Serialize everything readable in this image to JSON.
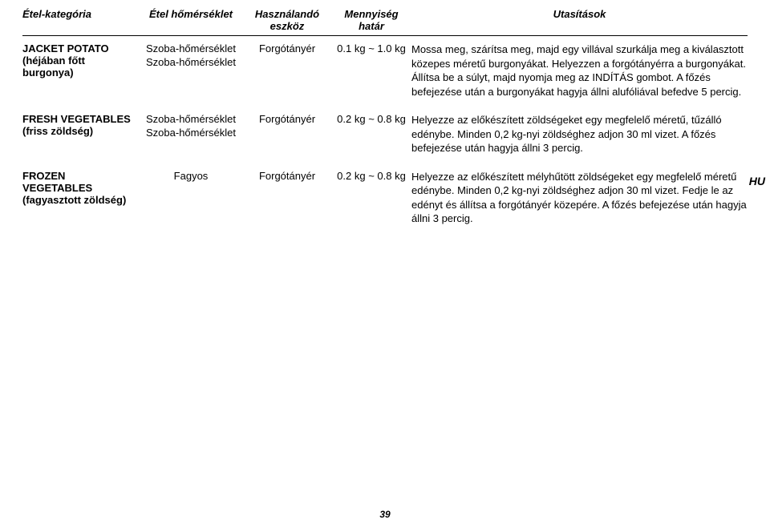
{
  "page_number": "39",
  "lang_code": "HU",
  "headers": {
    "col1": "Étel-kategória",
    "col2": "Étel hőmérséklet",
    "col3": "Használandó eszköz",
    "col4": "Mennyiség határ",
    "col5": "Utasítások"
  },
  "rows": [
    {
      "name": "JACKET POTATO (héjában főtt burgonya)",
      "temp": "Szoba-hőmérséklet Szoba-hőmérséklet",
      "tool": "Forgótányér",
      "qty": "0.1 kg ~ 1.0 kg",
      "instr": "Mossa meg, szárítsa meg, majd egy villával szurkálja meg a kiválasztott közepes méretű burgonyákat. Helyezzen a forgótányérra a burgonyákat. Állítsa be a súlyt, majd nyomja meg az INDÍTÁS gombot.\nA főzés befejezése után a burgonyákat hagyja állni alufóliával befedve 5 percig."
    },
    {
      "name": "FRESH VEGETABLES (friss zöldség)",
      "temp": "Szoba-hőmérséklet Szoba-hőmérséklet",
      "tool": "Forgótányér",
      "qty": "0.2 kg ~ 0.8 kg",
      "instr": "Helyezze az előkészített zöldségeket egy megfelelő méretű, tűzálló edénybe.\nMinden 0,2 kg-nyi zöldséghez adjon 30 ml vizet.\nA főzés befejezése után hagyja állni 3 percig."
    },
    {
      "name": "FROZEN VEGETABLES (fagyasztott zöldség)",
      "temp": "Fagyos",
      "tool": "Forgótányér",
      "qty": "0.2 kg ~ 0.8 kg",
      "instr": "Helyezze az előkészített mélyhűtött zöldségeket egy megfelelő méretű edénybe. Minden 0,2 kg-nyi zöldséghez adjon 30 ml vizet. Fedje le az edényt és állítsa a forgótányér közepére.\nA főzés befejezése után hagyja állni 3 percig."
    }
  ]
}
